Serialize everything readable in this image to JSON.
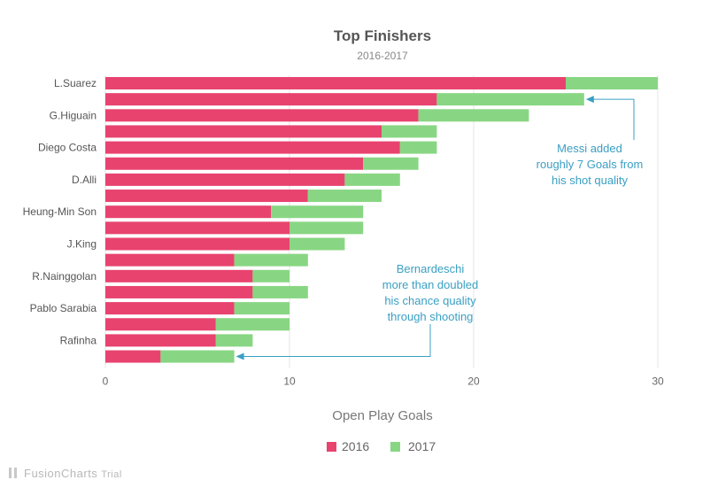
{
  "chart_data": {
    "type": "bar",
    "orientation": "horizontal",
    "stacked": true,
    "title": "Top Finishers",
    "subtitle": "2016-2017",
    "xlabel": "Open Play Goals",
    "ylabel": "",
    "xlim": [
      0,
      30
    ],
    "x_ticks": [
      "0",
      "10",
      "20",
      "30"
    ],
    "grid": true,
    "legend_position": "bottom",
    "categories": [
      "L.Suarez",
      "",
      "G.Higuain",
      "",
      "Diego Costa",
      "",
      "D.Alli",
      "",
      "Heung-Min Son",
      "",
      "J.King",
      "",
      "R.Nainggolan",
      "",
      "Pablo Sarabia",
      "",
      "Rafinha",
      ""
    ],
    "series": [
      {
        "name": "2016",
        "color": "#e8436f",
        "values": [
          25,
          18,
          17,
          15,
          16,
          14,
          13,
          11,
          9,
          10,
          10,
          7,
          8,
          8,
          7,
          6,
          6,
          3
        ]
      },
      {
        "name": "2017",
        "color": "#88d683",
        "values": [
          5,
          8,
          6,
          3,
          2,
          3,
          3,
          4,
          5,
          4,
          3,
          4,
          2,
          3,
          3,
          4,
          2,
          4
        ]
      }
    ],
    "annotations": [
      {
        "lines": [
          "Messi added",
          "roughly 7 Goals from",
          "his shot quality"
        ],
        "points_to_bar": 1,
        "color": "#3a9fc3"
      },
      {
        "lines": [
          "Bernardeschi",
          "more than doubled",
          "his chance quality",
          "through shooting"
        ],
        "points_to_bar": 17,
        "color": "#3a9fc3"
      }
    ]
  },
  "watermark": {
    "brand": "FusionCharts",
    "suffix": "Trial"
  }
}
